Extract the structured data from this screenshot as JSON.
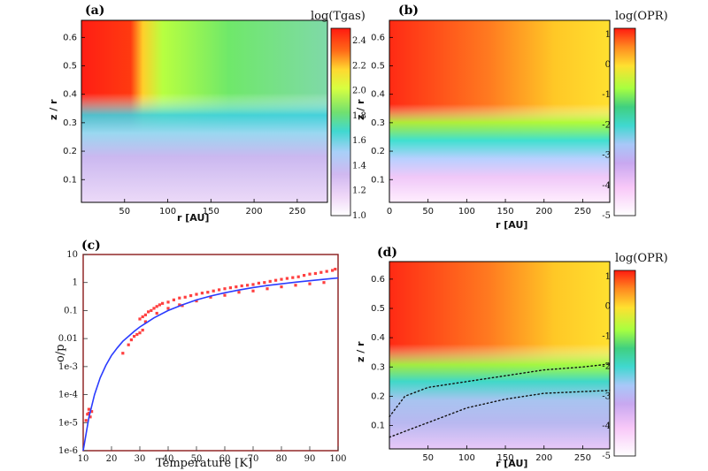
{
  "chart_data": [
    {
      "panel": "(a)",
      "type": "heatmap",
      "xlabel": "r [AU]",
      "ylabel": "z / r",
      "colorbar_label": "log(Tgas)",
      "x_ticks": [
        "50",
        "100",
        "150",
        "200",
        "250"
      ],
      "y_ticks": [
        "0.1",
        "0.2",
        "0.3",
        "0.4",
        "0.5",
        "0.6"
      ],
      "colorbar_ticks": [
        "1.0",
        "1.2",
        "1.4",
        "1.6",
        "1.8",
        "2.0",
        "2.2",
        "2.4"
      ],
      "xlim": [
        0,
        285
      ],
      "ylim": [
        0.02,
        0.66
      ],
      "clim": [
        1.0,
        2.5
      ]
    },
    {
      "panel": "(b)",
      "type": "heatmap",
      "xlabel": "r [AU]",
      "ylabel": "z / r",
      "colorbar_label": "log(OPR)",
      "x_ticks": [
        "0",
        "50",
        "100",
        "150",
        "200",
        "250"
      ],
      "y_ticks": [
        "0.1",
        "0.2",
        "0.3",
        "0.4",
        "0.5",
        "0.6"
      ],
      "colorbar_ticks": [
        "1",
        "0",
        "-1",
        "-2",
        "-3",
        "-4",
        "-5"
      ],
      "xlim": [
        0,
        285
      ],
      "ylim": [
        0.02,
        0.66
      ],
      "clim": [
        -5,
        1.2
      ]
    },
    {
      "panel": "(c)",
      "type": "scatter",
      "xlabel": "Temperature [K]",
      "ylabel": "o/p",
      "x_ticks": [
        "10",
        "20",
        "30",
        "40",
        "50",
        "60",
        "70",
        "80",
        "90",
        "100"
      ],
      "y_ticks": [
        "10",
        "1",
        "0.1",
        "0.01",
        "1e-3",
        "1e-4",
        "1e-5",
        "1e-6"
      ],
      "xlim": [
        10,
        100
      ],
      "ylim": [
        1e-06,
        10
      ],
      "yscale": "log",
      "series": [
        {
          "kind": "scatter",
          "color": "#ff4040",
          "points": [
            [
              11,
              1.2e-05
            ],
            [
              11.5,
              2e-05
            ],
            [
              12,
              3e-05
            ],
            [
              12.5,
              1.6e-05
            ],
            [
              13,
              2.5e-05
            ],
            [
              12,
              2.2e-05
            ],
            [
              24,
              0.003
            ],
            [
              26,
              0.006
            ],
            [
              27,
              0.009
            ],
            [
              28,
              0.012
            ],
            [
              29,
              0.014
            ],
            [
              30,
              0.016
            ],
            [
              31,
              0.02
            ],
            [
              30,
              0.05
            ],
            [
              31,
              0.06
            ],
            [
              32,
              0.07
            ],
            [
              33,
              0.09
            ],
            [
              34,
              0.1
            ],
            [
              35,
              0.12
            ],
            [
              36,
              0.14
            ],
            [
              37,
              0.16
            ],
            [
              38,
              0.18
            ],
            [
              40,
              0.2
            ],
            [
              42,
              0.24
            ],
            [
              44,
              0.28
            ],
            [
              46,
              0.3
            ],
            [
              48,
              0.34
            ],
            [
              50,
              0.38
            ],
            [
              52,
              0.42
            ],
            [
              54,
              0.45
            ],
            [
              56,
              0.5
            ],
            [
              58,
              0.55
            ],
            [
              60,
              0.6
            ],
            [
              62,
              0.65
            ],
            [
              64,
              0.7
            ],
            [
              66,
              0.76
            ],
            [
              68,
              0.8
            ],
            [
              70,
              0.85
            ],
            [
              72,
              0.95
            ],
            [
              74,
              1.0
            ],
            [
              76,
              1.1
            ],
            [
              78,
              1.2
            ],
            [
              80,
              1.3
            ],
            [
              82,
              1.4
            ],
            [
              84,
              1.5
            ],
            [
              86,
              1.6
            ],
            [
              88,
              1.8
            ],
            [
              90,
              2.0
            ],
            [
              92,
              2.1
            ],
            [
              94,
              2.3
            ],
            [
              96,
              2.5
            ],
            [
              98,
              2.7
            ],
            [
              99,
              3.0
            ],
            [
              45,
              0.15
            ],
            [
              50,
              0.22
            ],
            [
              55,
              0.3
            ],
            [
              60,
              0.35
            ],
            [
              65,
              0.45
            ],
            [
              70,
              0.5
            ],
            [
              75,
              0.6
            ],
            [
              80,
              0.7
            ],
            [
              85,
              0.8
            ],
            [
              90,
              0.9
            ],
            [
              95,
              1.0
            ],
            [
              36,
              0.08
            ],
            [
              40,
              0.12
            ],
            [
              44,
              0.16
            ],
            [
              32,
              0.04
            ]
          ]
        },
        {
          "kind": "line",
          "color": "#2b3cff",
          "points": [
            [
              10,
              1e-06
            ],
            [
              12,
              1.5e-05
            ],
            [
              14,
              0.0001
            ],
            [
              16,
              0.0004
            ],
            [
              18,
              0.0011
            ],
            [
              20,
              0.0025
            ],
            [
              22,
              0.0046
            ],
            [
              24,
              0.008
            ],
            [
              26,
              0.012
            ],
            [
              28,
              0.018
            ],
            [
              30,
              0.026
            ],
            [
              32,
              0.035
            ],
            [
              35,
              0.055
            ],
            [
              40,
              0.1
            ],
            [
              45,
              0.16
            ],
            [
              50,
              0.24
            ],
            [
              55,
              0.33
            ],
            [
              60,
              0.43
            ],
            [
              65,
              0.54
            ],
            [
              70,
              0.66
            ],
            [
              75,
              0.78
            ],
            [
              80,
              0.9
            ],
            [
              85,
              1.03
            ],
            [
              90,
              1.16
            ],
            [
              95,
              1.3
            ],
            [
              100,
              1.45
            ]
          ]
        }
      ]
    },
    {
      "panel": "(d)",
      "type": "heatmap",
      "xlabel": "r [AU]",
      "ylabel": "z / r",
      "colorbar_label": "log(OPR)",
      "x_ticks": [
        "50",
        "100",
        "150",
        "200",
        "250"
      ],
      "y_ticks": [
        "0.1",
        "0.2",
        "0.3",
        "0.4",
        "0.5",
        "0.6"
      ],
      "colorbar_ticks": [
        "1",
        "0",
        "-1",
        "-2",
        "-3",
        "-4",
        "-5"
      ],
      "xlim": [
        0,
        285
      ],
      "ylim": [
        0.02,
        0.66
      ],
      "clim": [
        -5,
        1.2
      ],
      "contours": [
        {
          "style": "dotted",
          "points": [
            [
              0,
              0.13
            ],
            [
              20,
              0.2
            ],
            [
              50,
              0.23
            ],
            [
              100,
              0.25
            ],
            [
              150,
              0.27
            ],
            [
              200,
              0.29
            ],
            [
              250,
              0.3
            ],
            [
              285,
              0.31
            ]
          ]
        },
        {
          "style": "dotted",
          "points": [
            [
              0,
              0.06
            ],
            [
              30,
              0.09
            ],
            [
              70,
              0.13
            ],
            [
              100,
              0.16
            ],
            [
              150,
              0.19
            ],
            [
              200,
              0.21
            ],
            [
              285,
              0.22
            ]
          ]
        }
      ]
    }
  ]
}
